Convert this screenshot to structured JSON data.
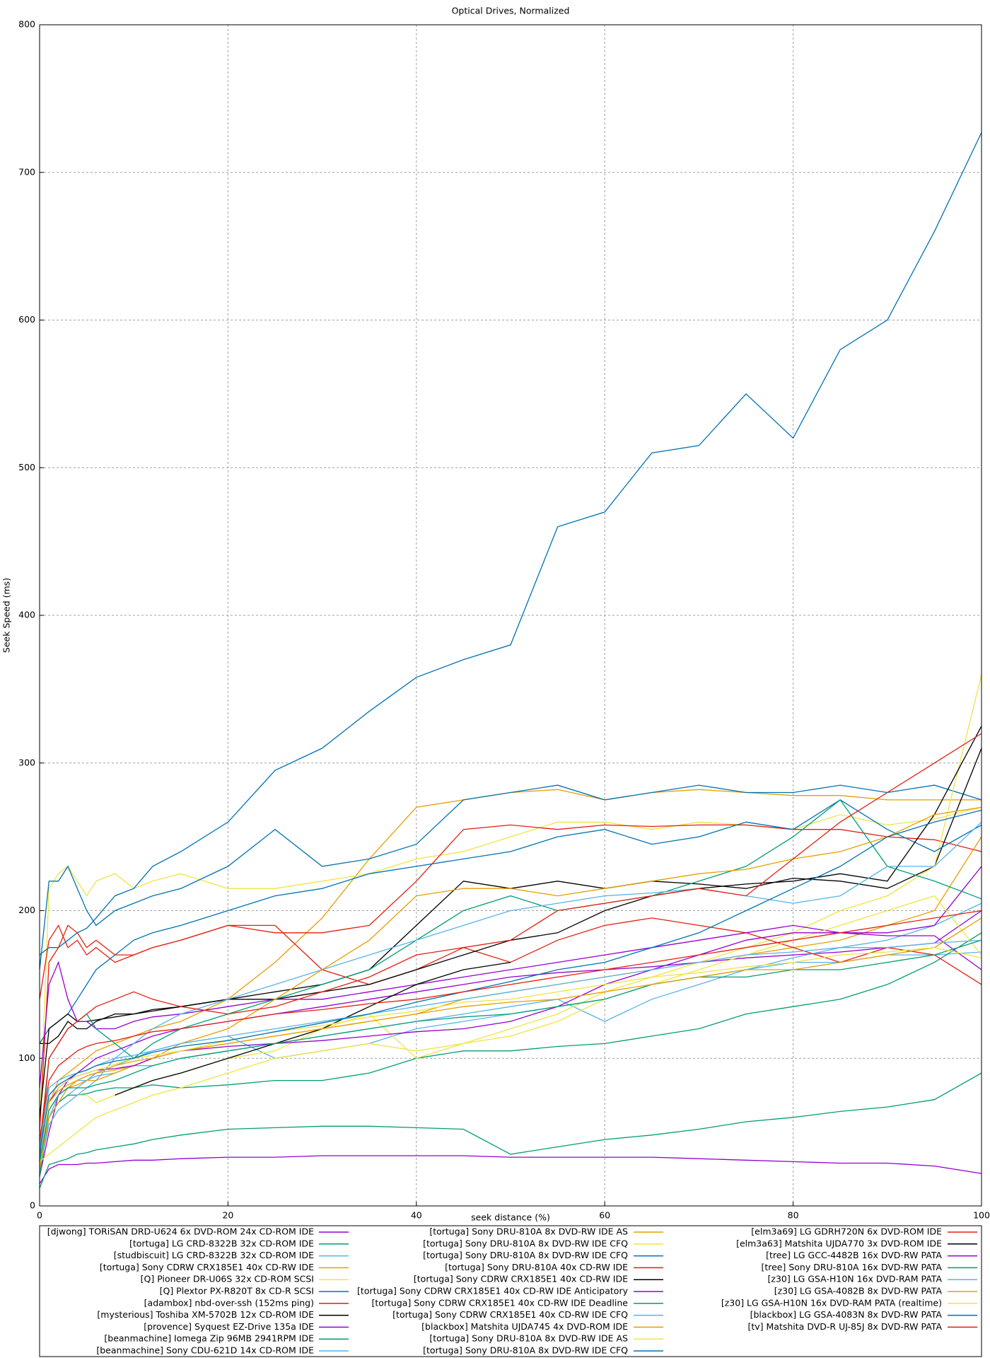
{
  "chart_data": {
    "type": "line",
    "title": "Optical Drives, Normalized",
    "x_label": "seek distance (%)",
    "y_label": "Seek Speed (ms)",
    "xlim": [
      0,
      100
    ],
    "xticks": [
      0,
      20,
      40,
      60,
      80,
      100
    ],
    "ylim": [
      0,
      800
    ],
    "yticks": [
      0,
      100,
      200,
      300,
      400,
      500,
      600,
      700,
      800
    ],
    "grid": true,
    "x": [
      0,
      1,
      2,
      3,
      4,
      5,
      6,
      8,
      10,
      12,
      15,
      20,
      25,
      30,
      35,
      40,
      45,
      50,
      55,
      60,
      65,
      70,
      75,
      80,
      85,
      90,
      95,
      100
    ],
    "series": [
      {
        "name": "[djwong] TORiSAN DRD-U624 6x DVD-ROM 24x CD-ROM IDE",
        "color": "#9400d3",
        "values": [
          15,
          25,
          28,
          28,
          28,
          29,
          29,
          30,
          31,
          31,
          32,
          33,
          33,
          34,
          34,
          34,
          34,
          33,
          33,
          33,
          33,
          32,
          31,
          30,
          29,
          29,
          27,
          22
        ]
      },
      {
        "name": "[tortuga] LG CRD-8322B 32x CD-ROM IDE",
        "color": "#009e73",
        "values": [
          12,
          28,
          30,
          32,
          35,
          36,
          38,
          40,
          42,
          45,
          48,
          52,
          53,
          54,
          54,
          53,
          52,
          35,
          40,
          45,
          48,
          52,
          57,
          60,
          64,
          67,
          72,
          90
        ]
      },
      {
        "name": "[studbiscuit] LG CRD-8322B 32x CD-ROM IDE",
        "color": "#56b4e9",
        "values": [
          30,
          60,
          70,
          75,
          80,
          85,
          90,
          95,
          100,
          105,
          110,
          115,
          100,
          105,
          110,
          120,
          125,
          130,
          135,
          140,
          150,
          155,
          160,
          165,
          165,
          170,
          170,
          172
        ]
      },
      {
        "name": "[tortuga] Sony CDRW CRX185E1 40x CD-RW IDE",
        "color": "#e69f00",
        "values": [
          40,
          70,
          85,
          90,
          95,
          100,
          105,
          110,
          115,
          120,
          125,
          140,
          165,
          195,
          235,
          270,
          275,
          280,
          282,
          275,
          280,
          282,
          280,
          278,
          278,
          275,
          275,
          275
        ]
      },
      {
        "name": "[Q] Pioneer DR-U06S 32x CD-ROM SCSI",
        "color": "#f0e442",
        "values": [
          50,
          215,
          225,
          230,
          220,
          210,
          220,
          225,
          215,
          220,
          225,
          215,
          215,
          220,
          225,
          235,
          240,
          250,
          260,
          260,
          255,
          260,
          258,
          255,
          265,
          258,
          262,
          270
        ]
      },
      {
        "name": "[Q] Plextor PX-R820T 8x CD-R SCSI",
        "color": "#0072b2",
        "values": [
          160,
          220,
          220,
          230,
          215,
          200,
          190,
          200,
          205,
          210,
          215,
          230,
          255,
          230,
          235,
          245,
          275,
          280,
          285,
          275,
          280,
          285,
          280,
          280,
          285,
          280,
          285,
          275
        ]
      },
      {
        "name": "[adambox] nbd-over-ssh (152ms ping)",
        "color": "#e51e10",
        "values": [
          140,
          180,
          190,
          175,
          180,
          170,
          175,
          165,
          170,
          175,
          180,
          190,
          185,
          185,
          190,
          220,
          255,
          258,
          255,
          258,
          257,
          258,
          258,
          255,
          255,
          250,
          248,
          240
        ]
      },
      {
        "name": "[mysterious] Toshiba XM-5702B 12x CD-ROM IDE",
        "color": "#000000",
        "values": [
          110,
          110,
          115,
          125,
          120,
          120,
          125,
          130,
          130,
          133,
          135,
          140,
          145,
          150,
          160,
          190,
          220,
          215,
          220,
          215,
          220,
          218,
          215,
          222,
          220,
          215,
          230,
          310
        ]
      },
      {
        "name": "[provence] Syquest EZ-Drive 135a IDE",
        "color": "#9400d3",
        "values": [
          20,
          50,
          75,
          85,
          90,
          95,
          100,
          105,
          110,
          115,
          120,
          125,
          130,
          135,
          140,
          145,
          150,
          155,
          158,
          160,
          162,
          165,
          168,
          170,
          172,
          175,
          178,
          200
        ]
      },
      {
        "name": "[beanmachine] Iomega Zip 96MB 2941RPM IDE",
        "color": "#009e73",
        "values": [
          20,
          60,
          70,
          75,
          75,
          76,
          78,
          80,
          80,
          82,
          80,
          82,
          85,
          85,
          90,
          100,
          105,
          105,
          108,
          110,
          115,
          120,
          130,
          135,
          140,
          150,
          165,
          185
        ]
      },
      {
        "name": "[beanmachine] Sony CDU-621D 14x CD-ROM IDE",
        "color": "#56b4e9",
        "values": [
          25,
          60,
          75,
          80,
          85,
          85,
          88,
          90,
          95,
          95,
          100,
          105,
          110,
          115,
          120,
          125,
          130,
          135,
          140,
          125,
          140,
          150,
          160,
          168,
          175,
          180,
          190,
          205
        ]
      },
      {
        "name": "[tortuga] Sony DRU-810A 8x DVD-RW IDE AS",
        "color": "#e69f00",
        "values": [
          30,
          65,
          75,
          80,
          85,
          88,
          90,
          92,
          95,
          100,
          105,
          110,
          115,
          120,
          125,
          130,
          140,
          145,
          150,
          155,
          160,
          165,
          170,
          175,
          180,
          190,
          200,
          250
        ]
      },
      {
        "name": "[tortuga] Sony DRU-810A 8x DVD-RW IDE CFQ",
        "color": "#f0e442",
        "values": [
          25,
          55,
          65,
          70,
          75,
          75,
          70,
          75,
          80,
          85,
          90,
          100,
          105,
          120,
          130,
          100,
          110,
          120,
          130,
          145,
          155,
          165,
          175,
          185,
          200,
          210,
          230,
          360
        ]
      },
      {
        "name": "[tortuga] Sony DRU-810A 8x DVD-RW IDE CFQ",
        "color": "#0072b2",
        "values": [
          110,
          120,
          125,
          130,
          140,
          150,
          160,
          170,
          180,
          185,
          190,
          200,
          210,
          215,
          225,
          230,
          235,
          240,
          250,
          255,
          245,
          250,
          260,
          255,
          275,
          255,
          240,
          258
        ]
      },
      {
        "name": "[tortuga] Sony DRU-810A 40x CD-RW IDE",
        "color": "#e51e10",
        "values": [
          50,
          165,
          175,
          190,
          185,
          175,
          180,
          170,
          170,
          175,
          180,
          190,
          190,
          160,
          150,
          160,
          175,
          165,
          180,
          190,
          195,
          190,
          185,
          175,
          165,
          175,
          170,
          150
        ]
      },
      {
        "name": "[tortuga] Sony CDRW CRX185E1 40x CD-RW IDE",
        "color": "#000000",
        "values": [
          60,
          120,
          125,
          130,
          125,
          125,
          126,
          128,
          130,
          132,
          135,
          140,
          140,
          145,
          150,
          160,
          170,
          180,
          185,
          200,
          210,
          215,
          218,
          220,
          225,
          220,
          265,
          325
        ]
      },
      {
        "name": "[tortuga] Sony CDRW CRX185E1 40x CD-RW IDE Anticipatory",
        "color": "#9400d3",
        "values": [
          80,
          150,
          165,
          140,
          125,
          125,
          120,
          120,
          125,
          128,
          130,
          135,
          140,
          140,
          145,
          150,
          155,
          160,
          165,
          170,
          175,
          180,
          185,
          190,
          185,
          185,
          190,
          230
        ]
      },
      {
        "name": "[tortuga] Sony CDRW CRX185E1 40x CD-RW IDE Deadline",
        "color": "#009e73",
        "values": [
          30,
          100,
          110,
          120,
          125,
          130,
          120,
          110,
          100,
          110,
          120,
          130,
          140,
          150,
          160,
          180,
          200,
          210,
          200,
          205,
          210,
          220,
          230,
          250,
          275,
          230,
          220,
          208
        ]
      },
      {
        "name": "[tortuga] Sony CDRW CRX185E1 40x CD-RW IDE CFQ",
        "color": "#56b4e9",
        "values": [
          25,
          55,
          65,
          70,
          75,
          80,
          85,
          100,
          110,
          120,
          130,
          140,
          150,
          160,
          170,
          180,
          190,
          200,
          205,
          210,
          212,
          215,
          210,
          205,
          210,
          230,
          230,
          260
        ]
      },
      {
        "name": "[blackbox] Matshita UJDA745 4x DVD-ROM IDE",
        "color": "#e69f00",
        "values": [
          25,
          60,
          70,
          80,
          82,
          85,
          85,
          90,
          95,
          100,
          110,
          120,
          140,
          160,
          180,
          210,
          215,
          215,
          210,
          215,
          220,
          225,
          228,
          235,
          240,
          250,
          265,
          270
        ]
      },
      {
        "name": "[tortuga] Sony DRU-810A 8x DVD-RW IDE AS",
        "color": "#f0e442",
        "values": [
          30,
          35,
          40,
          45,
          50,
          55,
          60,
          65,
          70,
          75,
          80,
          90,
          100,
          105,
          110,
          105,
          110,
          115,
          125,
          140,
          150,
          160,
          170,
          180,
          190,
          200,
          210,
          170
        ]
      },
      {
        "name": "[tortuga] Sony DRU-810A 8x DVD-RW IDE CFQ",
        "color": "#0072b2",
        "values": [
          170,
          175,
          175,
          180,
          185,
          188,
          195,
          210,
          215,
          230,
          240,
          260,
          295,
          310,
          335,
          358,
          370,
          380,
          460,
          470,
          510,
          515,
          550,
          520,
          580,
          600,
          660,
          727
        ]
      },
      {
        "name": "[elm3a69] LG GDRH720N 6x DVD-ROM IDE",
        "color": "#e51e10",
        "values": [
          40,
          100,
          110,
          120,
          125,
          130,
          135,
          140,
          145,
          140,
          135,
          130,
          135,
          145,
          155,
          170,
          175,
          180,
          200,
          205,
          210,
          215,
          210,
          235,
          260,
          280,
          300,
          320
        ]
      },
      {
        "name": "[elm3a63] Matshita UJDA770 3x DVD-ROM IDE",
        "color": "#000000",
        "values": [
          null,
          null,
          null,
          null,
          null,
          null,
          null,
          75,
          80,
          85,
          90,
          100,
          110,
          120,
          135,
          150,
          160,
          165,
          null,
          null,
          null,
          null,
          null,
          null,
          null,
          null,
          null,
          null
        ]
      },
      {
        "name": "[tree] LG GCC-4482B 16x DVD-RW PATA",
        "color": "#9400d3",
        "values": [
          40,
          70,
          80,
          85,
          88,
          90,
          92,
          93,
          95,
          100,
          105,
          108,
          110,
          112,
          115,
          118,
          120,
          125,
          135,
          150,
          160,
          170,
          180,
          185,
          185,
          183,
          183,
          160
        ]
      },
      {
        "name": "[tree] Sony DRU-810A 16x DVD-RW PATA",
        "color": "#009e73",
        "values": [
          30,
          65,
          75,
          80,
          80,
          80,
          82,
          85,
          90,
          95,
          100,
          105,
          110,
          115,
          120,
          125,
          128,
          130,
          135,
          140,
          150,
          155,
          155,
          160,
          160,
          165,
          170,
          180
        ]
      },
      {
        "name": "[z30] LG GSA-H10N 16x DVD-RAM PATA",
        "color": "#56b4e9",
        "values": [
          40,
          80,
          85,
          88,
          90,
          92,
          95,
          100,
          102,
          105,
          110,
          115,
          120,
          125,
          130,
          135,
          140,
          145,
          150,
          155,
          160,
          165,
          170,
          172,
          175,
          175,
          178,
          180
        ]
      },
      {
        "name": "[z30] LG GSA-4082B 8x DVD-RW PATA",
        "color": "#e69f00",
        "values": [
          35,
          70,
          78,
          82,
          85,
          88,
          90,
          95,
          98,
          100,
          105,
          110,
          115,
          120,
          125,
          130,
          135,
          138,
          140,
          145,
          150,
          155,
          160,
          160,
          165,
          170,
          175,
          195
        ]
      },
      {
        "name": "[z30] LG GSA-H10N 16x DVD-RAM PATA (realtime)",
        "color": "#f0e442",
        "values": [
          35,
          72,
          80,
          85,
          88,
          90,
          92,
          96,
          100,
          102,
          105,
          112,
          118,
          122,
          128,
          132,
          138,
          140,
          145,
          150,
          155,
          158,
          162,
          165,
          170,
          172,
          175,
          168
        ]
      },
      {
        "name": "[blackbox] LG GSA-4083N 8x DVD-RW PATA",
        "color": "#0072b2",
        "values": [
          35,
          75,
          82,
          86,
          90,
          92,
          95,
          98,
          100,
          104,
          108,
          112,
          118,
          124,
          130,
          138,
          145,
          152,
          160,
          165,
          175,
          185,
          200,
          215,
          230,
          250,
          260,
          268
        ]
      },
      {
        "name": "[tv] Matshita DVD-R UJ-85J 8x DVD-RW PATA",
        "color": "#e51e10",
        "values": [
          45,
          85,
          95,
          100,
          105,
          108,
          110,
          112,
          115,
          118,
          120,
          125,
          130,
          133,
          137,
          140,
          145,
          150,
          155,
          160,
          165,
          170,
          175,
          180,
          185,
          190,
          195,
          200
        ]
      }
    ]
  }
}
